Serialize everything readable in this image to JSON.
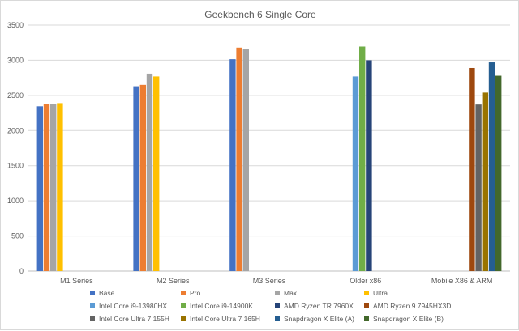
{
  "chart_data": {
    "type": "bar",
    "title": "Geekbench 6 Single Core",
    "categories": [
      "M1 Series",
      "M2 Series",
      "M3 Series",
      "Older x86",
      "Mobile X86 & ARM"
    ],
    "ylim": [
      0,
      3500
    ],
    "yticks": [
      0,
      500,
      1000,
      1500,
      2000,
      2500,
      3000,
      3500
    ],
    "grid": true,
    "legend_position": "bottom",
    "series": [
      {
        "name": "Base",
        "color": "#4472c4",
        "values": [
          2345,
          2630,
          3015,
          null,
          null
        ]
      },
      {
        "name": "Pro",
        "color": "#ed7d31",
        "values": [
          2380,
          2650,
          3180,
          null,
          null
        ]
      },
      {
        "name": "Max",
        "color": "#a5a5a5",
        "values": [
          2380,
          2810,
          3165,
          null,
          null
        ]
      },
      {
        "name": "Ultra",
        "color": "#ffc000",
        "values": [
          2390,
          2770,
          null,
          null,
          null
        ]
      },
      {
        "name": "Intel Core i9-13980HX",
        "color": "#5b9bd5",
        "values": [
          null,
          null,
          null,
          2770,
          null
        ]
      },
      {
        "name": "Intel Core i9-14900K",
        "color": "#70ad47",
        "values": [
          null,
          null,
          null,
          3195,
          null
        ]
      },
      {
        "name": "AMD Ryzen TR 7960X",
        "color": "#264478",
        "values": [
          null,
          null,
          null,
          3000,
          null
        ]
      },
      {
        "name": "AMD Ryzen 9 7945HX3D",
        "color": "#9e480e",
        "values": [
          null,
          null,
          null,
          null,
          2890
        ]
      },
      {
        "name": "Intel Core Ultra 7 155H",
        "color": "#636363",
        "values": [
          null,
          null,
          null,
          null,
          2370
        ]
      },
      {
        "name": "Intel Core Ultra 7 165H",
        "color": "#997300",
        "values": [
          null,
          null,
          null,
          null,
          2540
        ]
      },
      {
        "name": "Snapdragon X Elite (A)",
        "color": "#255e91",
        "values": [
          null,
          null,
          null,
          null,
          2970
        ]
      },
      {
        "name": "Snapdragon X Elite (B)",
        "color": "#43682b",
        "values": [
          null,
          null,
          null,
          null,
          2780
        ]
      }
    ]
  }
}
